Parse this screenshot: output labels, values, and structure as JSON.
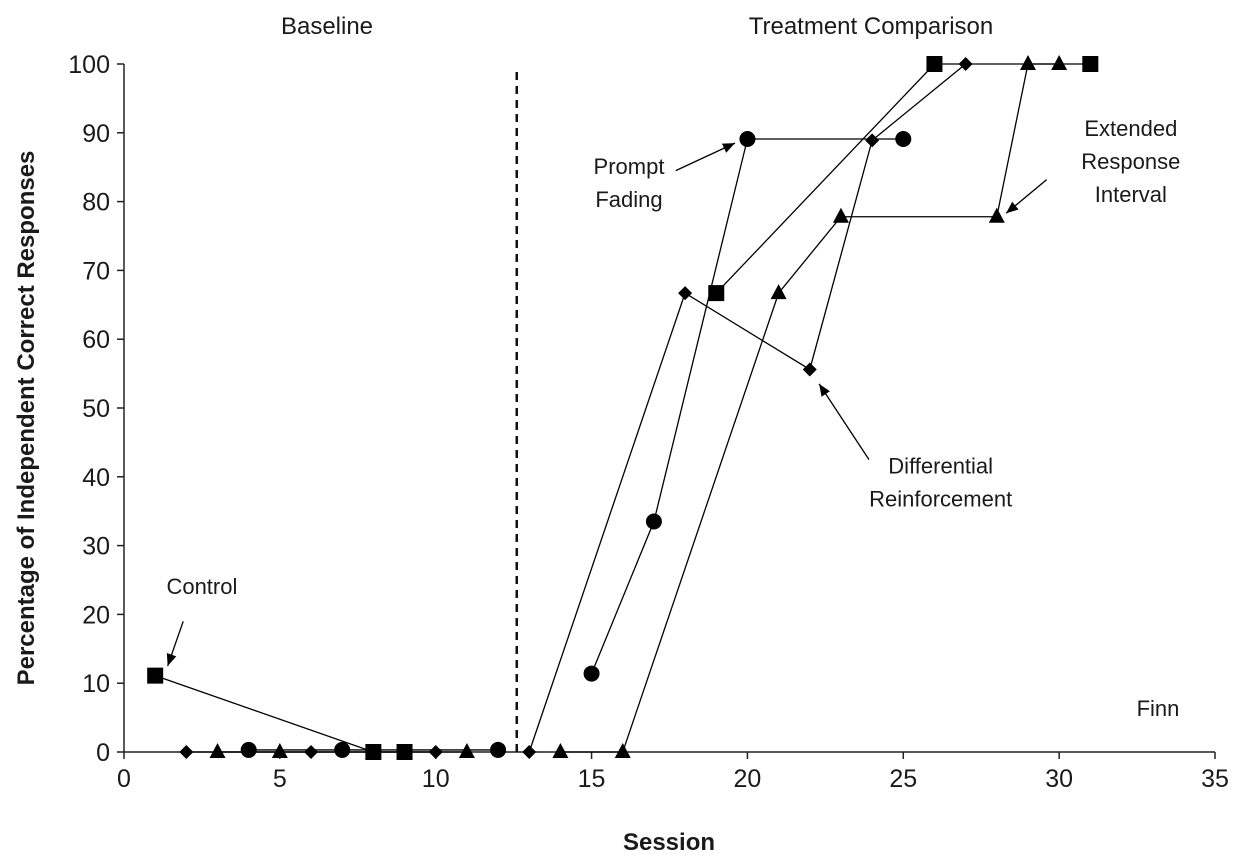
{
  "chart_data": {
    "type": "line",
    "xlabel": "Session",
    "ylabel": "Percentage of Independent Correct Responses",
    "xlim": [
      0,
      35
    ],
    "ylim": [
      0,
      100
    ],
    "xticks": [
      0,
      5,
      10,
      15,
      20,
      25,
      30,
      35
    ],
    "yticks": [
      0,
      10,
      20,
      30,
      40,
      50,
      60,
      70,
      80,
      90,
      100
    ],
    "grid": false,
    "legend": "none",
    "phase_change_x": 12.6,
    "phase_labels": [
      "Baseline",
      "Treatment Comparison"
    ],
    "participant_label": "Finn",
    "series": [
      {
        "name": "Control",
        "marker": "square",
        "baseline": {
          "x": [
            1,
            8,
            9
          ],
          "y": [
            11.1,
            0,
            0
          ]
        },
        "treatment": {
          "x": [
            19,
            26,
            31
          ],
          "y": [
            66.7,
            100,
            100
          ]
        }
      },
      {
        "name": "Differential Reinforcement",
        "marker": "diamond",
        "baseline": {
          "x": [
            2,
            6,
            10
          ],
          "y": [
            0,
            0,
            0
          ]
        },
        "treatment": {
          "x": [
            13,
            18,
            22,
            24,
            27
          ],
          "y": [
            0,
            66.7,
            55.6,
            88.9,
            100
          ]
        }
      },
      {
        "name": "Extended Response Interval",
        "marker": "triangle",
        "baseline": {
          "x": [
            3,
            5,
            11
          ],
          "y": [
            0,
            0,
            0
          ]
        },
        "treatment": {
          "x": [
            14,
            16,
            21,
            23,
            28,
            29,
            30
          ],
          "y": [
            0,
            0,
            66.7,
            77.8,
            77.8,
            100,
            100
          ]
        }
      },
      {
        "name": "Prompt Fading",
        "marker": "circle",
        "baseline": {
          "x": [
            4,
            7,
            12
          ],
          "y": [
            0.3,
            0.3,
            0.3
          ]
        },
        "treatment": {
          "x": [
            15,
            17,
            20,
            25
          ],
          "y": [
            11.4,
            33.5,
            89.1,
            89.1
          ]
        }
      }
    ],
    "annotations": [
      {
        "series": "Control",
        "lines": [
          "Control"
        ],
        "text_at": [
          2.5,
          23
        ],
        "arrow_from": [
          1.9,
          19
        ],
        "arrow_to": [
          1.4,
          12.5
        ]
      },
      {
        "series": "Prompt Fading",
        "lines": [
          "Prompt",
          "Fading"
        ],
        "text_at": [
          16.2,
          84
        ],
        "arrow_from": [
          17.7,
          84.5
        ],
        "arrow_to": [
          19.6,
          88.5
        ]
      },
      {
        "series": "Differential Reinforcement",
        "lines": [
          "Differential",
          "Reinforcement"
        ],
        "text_at": [
          26.2,
          40.5
        ],
        "arrow_from": [
          23.9,
          42.5
        ],
        "arrow_to": [
          22.3,
          53.5
        ]
      },
      {
        "series": "Extended Response Interval",
        "lines": [
          "Extended",
          "Response",
          "Interval"
        ],
        "text_at": [
          32.3,
          89.5
        ],
        "arrow_from": [
          29.6,
          83.2
        ],
        "arrow_to": [
          28.3,
          78.3
        ]
      }
    ]
  }
}
